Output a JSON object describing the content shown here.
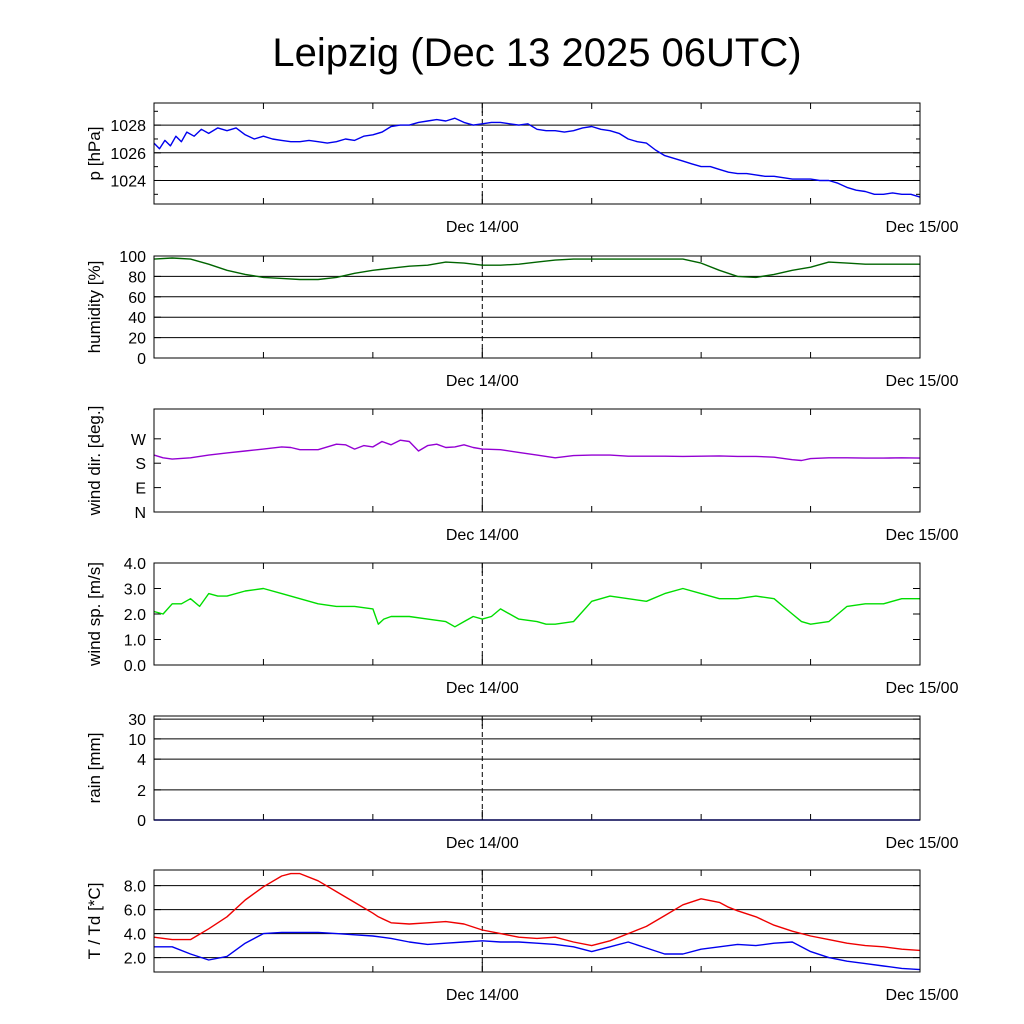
{
  "title": "Leipzig (Dec 13 2025 06UTC)",
  "x_labels": [
    "Dec 14/00",
    "Dec 15/00"
  ],
  "chart_data": [
    {
      "type": "line",
      "ylabel": "p [hPa]",
      "ylim": [
        1022.3,
        1029.6
      ],
      "yticks": [
        1024,
        1026,
        1028
      ],
      "ytick_labels": [
        "1024",
        "1026",
        "1028"
      ],
      "grid": true,
      "xlim": [
        0,
        42
      ],
      "series": [
        {
          "color": "#0000ee",
          "x": [
            0,
            0.3,
            0.6,
            0.9,
            1.2,
            1.5,
            1.8,
            2.2,
            2.6,
            3,
            3.5,
            4,
            4.5,
            5,
            5.5,
            6,
            6.5,
            7,
            7.5,
            8,
            8.5,
            9,
            9.5,
            10,
            10.5,
            11,
            11.5,
            12,
            12.5,
            13,
            13.5,
            14,
            14.5,
            15,
            15.5,
            16,
            16.5,
            17,
            17.5,
            18,
            18.5,
            19,
            19.5,
            20,
            20.5,
            21,
            21.5,
            22,
            22.5,
            23,
            23.5,
            24,
            24.5,
            25,
            25.5,
            26,
            26.5,
            27,
            27.5,
            28,
            28.5,
            29,
            29.5,
            30,
            30.5,
            31,
            31.5,
            32,
            32.5,
            33,
            33.5,
            34,
            34.5,
            35,
            35.5,
            36,
            36.5,
            37,
            37.5,
            38,
            38.5,
            39,
            39.5,
            40,
            40.5,
            41,
            41.5,
            42
          ],
          "y": [
            1026.7,
            1026.3,
            1026.9,
            1026.5,
            1027.2,
            1026.8,
            1027.5,
            1027.2,
            1027.7,
            1027.4,
            1027.8,
            1027.6,
            1027.8,
            1027.3,
            1027.0,
            1027.2,
            1027.0,
            1026.9,
            1026.8,
            1026.8,
            1026.9,
            1026.8,
            1026.7,
            1026.8,
            1027.0,
            1026.9,
            1027.2,
            1027.3,
            1027.5,
            1027.9,
            1028.0,
            1028.0,
            1028.2,
            1028.3,
            1028.4,
            1028.3,
            1028.5,
            1028.2,
            1028.0,
            1028.1,
            1028.2,
            1028.2,
            1028.1,
            1028.0,
            1028.1,
            1027.7,
            1027.6,
            1027.6,
            1027.5,
            1027.6,
            1027.8,
            1027.9,
            1027.7,
            1027.6,
            1027.4,
            1027.0,
            1026.8,
            1026.7,
            1026.2,
            1025.8,
            1025.6,
            1025.4,
            1025.2,
            1025.0,
            1025.0,
            1024.8,
            1024.6,
            1024.5,
            1024.5,
            1024.4,
            1024.3,
            1024.3,
            1024.2,
            1024.1,
            1024.1,
            1024.1,
            1024.0,
            1024.0,
            1023.8,
            1023.5,
            1023.3,
            1023.2,
            1023.0,
            1023.0,
            1023.1,
            1023.0,
            1023.0,
            1022.8
          ]
        }
      ]
    },
    {
      "type": "line",
      "ylabel": "humidity [%]",
      "ylim": [
        0,
        100
      ],
      "yticks": [
        0,
        20,
        40,
        60,
        80,
        100
      ],
      "ytick_labels": [
        "0",
        "20",
        "40",
        "60",
        "80",
        "100"
      ],
      "grid": true,
      "xlim": [
        0,
        42
      ],
      "series": [
        {
          "color": "#006400",
          "x": [
            0,
            1,
            2,
            3,
            4,
            5,
            6,
            7,
            8,
            9,
            10,
            11,
            12,
            13,
            14,
            15,
            16,
            17,
            18,
            19,
            20,
            21,
            22,
            23,
            24,
            25,
            26,
            27,
            28,
            29,
            30,
            31,
            32,
            33,
            34,
            35,
            36,
            37,
            38,
            39,
            40,
            41,
            42
          ],
          "y": [
            97,
            98,
            97,
            92,
            86,
            82,
            79,
            78,
            77,
            77,
            79,
            83,
            86,
            88,
            90,
            91,
            94,
            93,
            91,
            91,
            92,
            94,
            96,
            97,
            97,
            97,
            97,
            97,
            97,
            97,
            93,
            86,
            80,
            79,
            82,
            86,
            89,
            94,
            93,
            92,
            92,
            92,
            92
          ]
        }
      ]
    },
    {
      "type": "line",
      "ylabel": "wind dir. [deg.]",
      "ylim": [
        0,
        380
      ],
      "yticks": [
        0,
        90,
        180,
        270
      ],
      "ytick_labels": [
        "N",
        "E",
        "S",
        "W"
      ],
      "grid": false,
      "xlim": [
        0,
        42
      ],
      "series": [
        {
          "color": "#9400d3",
          "x": [
            0,
            0.5,
            1,
            2,
            3,
            4,
            5,
            6,
            7,
            7.5,
            8,
            9,
            10,
            10.5,
            11,
            11.5,
            12,
            12.5,
            13,
            13.5,
            14,
            14.5,
            15,
            15.5,
            16,
            16.5,
            17,
            17.5,
            18,
            19,
            20,
            21,
            22,
            23,
            24,
            25,
            26,
            27,
            28,
            29,
            30,
            31,
            32,
            33,
            34,
            35,
            35.5,
            36,
            37,
            38,
            39,
            40,
            41,
            42
          ],
          "y": [
            210,
            200,
            195,
            200,
            210,
            218,
            225,
            232,
            240,
            238,
            230,
            230,
            250,
            248,
            232,
            245,
            240,
            260,
            248,
            265,
            260,
            225,
            245,
            250,
            238,
            240,
            248,
            238,
            232,
            230,
            220,
            210,
            200,
            208,
            210,
            210,
            206,
            206,
            206,
            205,
            206,
            207,
            205,
            205,
            202,
            193,
            190,
            197,
            200,
            200,
            199,
            199,
            200,
            199
          ]
        }
      ]
    },
    {
      "type": "line",
      "ylabel": "wind sp. [m/s]",
      "ylim": [
        0,
        4
      ],
      "yticks": [
        0,
        1,
        2,
        3,
        4
      ],
      "ytick_labels": [
        "0.0",
        "1.0",
        "2.0",
        "3.0",
        "4.0"
      ],
      "grid": false,
      "xlim": [
        0,
        42
      ],
      "series": [
        {
          "color": "#00dd00",
          "x": [
            0,
            0.5,
            1,
            1.5,
            2,
            2.5,
            3,
            3.5,
            4,
            5,
            6,
            7,
            8,
            9,
            10,
            11,
            12,
            12.3,
            12.6,
            13,
            14,
            15,
            16,
            16.5,
            17,
            17.5,
            18,
            18.5,
            19,
            20,
            21,
            21.5,
            22,
            23,
            24,
            25,
            26,
            27,
            28,
            29,
            30,
            31,
            32,
            33,
            34,
            34.5,
            35,
            35.5,
            36,
            37,
            38,
            39,
            40,
            41,
            42
          ],
          "y": [
            2.1,
            2.0,
            2.4,
            2.4,
            2.6,
            2.3,
            2.8,
            2.7,
            2.7,
            2.9,
            3.0,
            2.8,
            2.6,
            2.4,
            2.3,
            2.3,
            2.2,
            1.6,
            1.8,
            1.9,
            1.9,
            1.8,
            1.7,
            1.5,
            1.7,
            1.9,
            1.8,
            1.9,
            2.2,
            1.8,
            1.7,
            1.6,
            1.6,
            1.7,
            2.5,
            2.7,
            2.6,
            2.5,
            2.8,
            3.0,
            2.8,
            2.6,
            2.6,
            2.7,
            2.6,
            2.3,
            2.0,
            1.7,
            1.6,
            1.7,
            2.3,
            2.4,
            2.4,
            2.6,
            2.6
          ]
        }
      ]
    },
    {
      "type": "line",
      "ylabel": "rain [mm]",
      "ylim": [
        0,
        30
      ],
      "scale": "nonlinear",
      "yticks": [
        0,
        2,
        4,
        10,
        30
      ],
      "ytick_labels": [
        "0",
        "2",
        "4",
        "10",
        "30"
      ],
      "grid": true,
      "xlim": [
        0,
        42
      ],
      "series": [
        {
          "color": "#0000ee",
          "x": [
            0,
            42
          ],
          "y": [
            0,
            0
          ]
        }
      ]
    },
    {
      "type": "line",
      "ylabel": "T / Td [*C]",
      "ylim": [
        0.8,
        9.3
      ],
      "yticks": [
        2,
        4,
        6,
        8
      ],
      "ytick_labels": [
        "2.0",
        "4.0",
        "6.0",
        "8.0"
      ],
      "grid": true,
      "xlim": [
        0,
        42
      ],
      "series": [
        {
          "color": "#ee0000",
          "x": [
            0,
            1,
            2,
            3,
            4,
            5,
            6,
            7,
            7.5,
            8,
            9,
            10,
            11,
            12,
            12.3,
            13,
            14,
            15,
            16,
            17,
            18,
            19,
            20,
            21,
            22,
            23,
            24,
            25,
            26,
            27,
            28,
            29,
            30,
            31,
            31.5,
            32,
            33,
            34,
            35,
            36,
            37,
            38,
            39,
            40,
            41,
            42
          ],
          "y": [
            3.7,
            3.5,
            3.5,
            4.4,
            5.4,
            6.8,
            7.9,
            8.8,
            9.0,
            9.0,
            8.4,
            7.5,
            6.6,
            5.7,
            5.4,
            4.9,
            4.8,
            4.9,
            5.0,
            4.8,
            4.3,
            4.0,
            3.7,
            3.6,
            3.7,
            3.3,
            3.0,
            3.4,
            4.0,
            4.6,
            5.5,
            6.4,
            6.9,
            6.6,
            6.2,
            5.9,
            5.4,
            4.7,
            4.2,
            3.8,
            3.5,
            3.2,
            3.0,
            2.9,
            2.7,
            2.6
          ]
        },
        {
          "color": "#0000ee",
          "x": [
            0,
            1,
            2,
            3,
            4,
            5,
            6,
            7,
            8,
            9,
            10,
            11,
            12,
            12.5,
            13,
            14,
            15,
            16,
            17,
            18,
            19,
            20,
            21,
            22,
            23,
            24,
            25,
            26,
            27,
            28,
            29,
            30,
            31,
            32,
            33,
            34,
            35,
            36,
            37,
            38,
            39,
            40,
            41,
            42
          ],
          "y": [
            2.9,
            2.9,
            2.3,
            1.8,
            2.1,
            3.2,
            4.0,
            4.1,
            4.1,
            4.1,
            4.0,
            3.9,
            3.8,
            3.7,
            3.6,
            3.3,
            3.1,
            3.2,
            3.3,
            3.4,
            3.3,
            3.3,
            3.2,
            3.1,
            2.9,
            2.5,
            2.9,
            3.3,
            2.8,
            2.3,
            2.3,
            2.7,
            2.9,
            3.1,
            3.0,
            3.2,
            3.3,
            2.5,
            2.0,
            1.7,
            1.5,
            1.3,
            1.1,
            1.0
          ]
        }
      ]
    }
  ]
}
